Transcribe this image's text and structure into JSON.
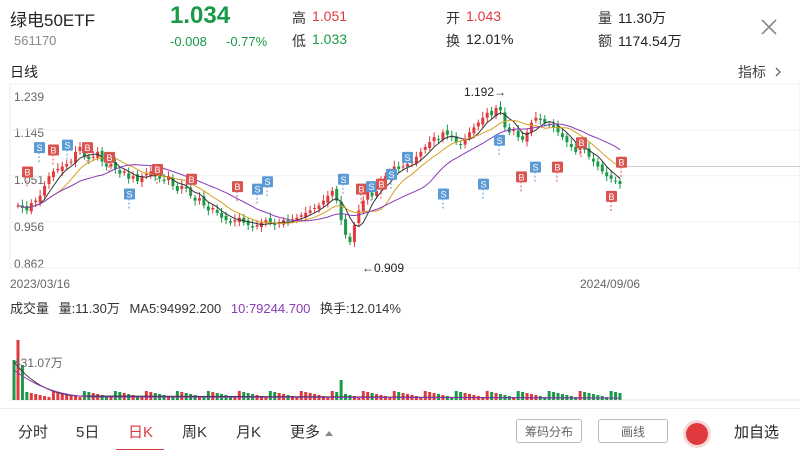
{
  "header": {
    "name": "绿电50ETF",
    "code": "561170",
    "price": "1.034",
    "change": "-0.008",
    "change_pct": "-0.77%",
    "high_label": "高",
    "high": "1.051",
    "low_label": "低",
    "low": "1.033",
    "open_label": "开",
    "open": "1.043",
    "turnover_label": "换",
    "turnover": "12.01%",
    "volume_label": "量",
    "volume": "11.30万",
    "amount_label": "额",
    "amount": "1174.54万"
  },
  "chart": {
    "title": "日线",
    "indicator": "指标",
    "y_ticks": [
      "1.239",
      "1.145",
      "1.051",
      "0.956",
      "0.862"
    ],
    "start_date": "2023/03/16",
    "end_date": "2024/09/06",
    "max_annotation": "1.192→",
    "min_annotation": "←0.909",
    "signal_b": "B",
    "signal_s": "S"
  },
  "volume": {
    "title": "成交量",
    "vol": "量:11.30万",
    "ma5": "MA5:94992.200",
    "ma10": "10:79244.700",
    "turnover": "换手:12.014%",
    "max_label": "431.07万"
  },
  "tabs": [
    "分时",
    "5日",
    "日K",
    "周K",
    "月K",
    "更多"
  ],
  "active_tab": "日K",
  "buttons": {
    "chip": "筹码分布",
    "draw": "画线",
    "add": "加自选"
  },
  "chart_data": {
    "type": "candlestick",
    "x_range": [
      "2023/03/16",
      "2024/09/06"
    ],
    "ylim": [
      0.862,
      1.239
    ],
    "y_ticks": [
      1.239,
      1.145,
      1.051,
      0.956,
      0.862
    ],
    "max": 1.192,
    "min": 0.909,
    "last_close": 1.034,
    "volume_max": "431.07万",
    "close_series": [
      0.99,
      0.985,
      0.98,
      0.995,
      1.0,
      1.01,
      1.03,
      1.05,
      1.06,
      1.065,
      1.07,
      1.075,
      1.08,
      1.1,
      1.11,
      1.09,
      1.085,
      1.09,
      1.1,
      1.08,
      1.07,
      1.075,
      1.065,
      1.055,
      1.06,
      1.045,
      1.05,
      1.04,
      1.05,
      1.055,
      1.06,
      1.05,
      1.045,
      1.04,
      1.05,
      1.03,
      1.02,
      1.03,
      1.025,
      1.01,
      1.0,
      1.005,
      0.99,
      0.98,
      0.985,
      0.975,
      0.965,
      0.96,
      0.955,
      0.96,
      0.965,
      0.955,
      0.95,
      0.945,
      0.95,
      0.955,
      0.96,
      0.955,
      0.95,
      0.955,
      0.96,
      0.958,
      0.962,
      0.965,
      0.97,
      0.975,
      0.98,
      0.985,
      0.99,
      1.0,
      1.01,
      1.02,
      1.0,
      0.96,
      0.93,
      0.915,
      0.95,
      0.98,
      1.0,
      1.02,
      1.01,
      1.02,
      1.04,
      1.05,
      1.06,
      1.07,
      1.065,
      1.07,
      1.075,
      1.08,
      1.09,
      1.1,
      1.11,
      1.12,
      1.13,
      1.125,
      1.14,
      1.135,
      1.13,
      1.12,
      1.115,
      1.125,
      1.14,
      1.15,
      1.16,
      1.17,
      1.18,
      1.175,
      1.19,
      1.185,
      1.15,
      1.14,
      1.145,
      1.13,
      1.125,
      1.14,
      1.16,
      1.17,
      1.165,
      1.16,
      1.155,
      1.15,
      1.14,
      1.13,
      1.12,
      1.11,
      1.1,
      1.11,
      1.105,
      1.09,
      1.08,
      1.07,
      1.06,
      1.05,
      1.045,
      1.04,
      1.034
    ]
  }
}
